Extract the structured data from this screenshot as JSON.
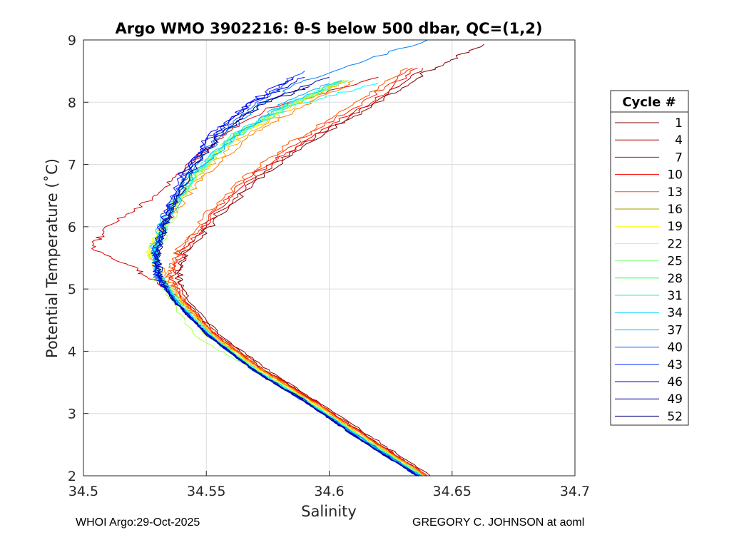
{
  "chart_data": {
    "type": "line",
    "title": "Argo WMO 3902216: θ-S below 500 dbar,  QC=(1,2)",
    "xlabel": "Salinity",
    "ylabel": "Potential Temperature (˚C)",
    "xlim": [
      34.5,
      34.7
    ],
    "ylim": [
      2,
      9
    ],
    "xticks": [
      "34.5",
      "34.55",
      "34.6",
      "34.65",
      "34.7"
    ],
    "yticks": [
      "2",
      "3",
      "4",
      "5",
      "6",
      "7",
      "8",
      "9"
    ],
    "grid": true,
    "legend": {
      "title": "Cycle #",
      "placement": "outside-right"
    },
    "series": [
      {
        "name": "1",
        "color": "#7f0000",
        "salinity": [
          34.641,
          34.618,
          34.595,
          34.575,
          34.556,
          34.543,
          34.539,
          34.542,
          34.556,
          34.574,
          34.596,
          34.618,
          34.64,
          34.663
        ],
        "theta": [
          2.0,
          2.6,
          3.2,
          3.7,
          4.25,
          4.8,
          5.2,
          5.6,
          6.2,
          6.85,
          7.45,
          7.95,
          8.5,
          8.93
        ]
      },
      {
        "name": "4",
        "color": "#a80000",
        "salinity": [
          34.64,
          34.617,
          34.594,
          34.574,
          34.555,
          34.542,
          34.538,
          34.541,
          34.554,
          34.572,
          34.594,
          34.616,
          34.638
        ],
        "theta": [
          2.0,
          2.6,
          3.2,
          3.7,
          4.25,
          4.8,
          5.2,
          5.6,
          6.2,
          6.85,
          7.45,
          7.95,
          8.55
        ]
      },
      {
        "name": "7",
        "color": "#d20000",
        "salinity": [
          34.64,
          34.617,
          34.594,
          34.573,
          34.554,
          34.542,
          34.535,
          34.522,
          34.503,
          34.51,
          34.528,
          34.54,
          34.555,
          34.575,
          34.62
        ],
        "theta": [
          2.0,
          2.6,
          3.2,
          3.7,
          4.25,
          4.7,
          5.0,
          5.3,
          5.65,
          6.0,
          6.45,
          6.9,
          7.4,
          7.9,
          8.4
        ]
      },
      {
        "name": "10",
        "color": "#fc0000",
        "salinity": [
          34.64,
          34.616,
          34.594,
          34.573,
          34.554,
          34.541,
          34.536,
          34.54,
          34.553,
          34.57,
          34.592,
          34.615,
          34.636
        ],
        "theta": [
          2.0,
          2.6,
          3.2,
          3.7,
          4.25,
          4.8,
          5.2,
          5.6,
          6.2,
          6.85,
          7.45,
          7.95,
          8.55
        ]
      },
      {
        "name": "13",
        "color": "#ff2a00",
        "salinity": [
          34.64,
          34.616,
          34.594,
          34.573,
          34.554,
          34.541,
          34.535,
          34.539,
          34.552,
          34.569,
          34.59,
          34.612,
          34.634
        ],
        "theta": [
          2.0,
          2.6,
          3.2,
          3.7,
          4.25,
          4.8,
          5.2,
          5.6,
          6.2,
          6.85,
          7.45,
          7.95,
          8.55
        ]
      },
      {
        "name": "16",
        "color": "#ff5500",
        "salinity": [
          34.639,
          34.616,
          34.593,
          34.573,
          34.554,
          34.541,
          34.535,
          34.538,
          34.55,
          34.567,
          34.588,
          34.61,
          34.632
        ],
        "theta": [
          2.0,
          2.6,
          3.2,
          3.7,
          4.25,
          4.8,
          5.2,
          5.6,
          6.2,
          6.85,
          7.45,
          7.95,
          8.55
        ]
      },
      {
        "name": "19",
        "color": "#ff7f00",
        "salinity": [
          34.639,
          34.615,
          34.593,
          34.572,
          34.553,
          34.54,
          34.533,
          34.528,
          34.536,
          34.55,
          34.568,
          34.59,
          34.61
        ],
        "theta": [
          2.0,
          2.6,
          3.2,
          3.7,
          4.25,
          4.8,
          5.2,
          5.6,
          6.2,
          6.85,
          7.45,
          7.95,
          8.35
        ]
      },
      {
        "name": "22",
        "color": "#ffaa00",
        "salinity": [
          34.639,
          34.615,
          34.593,
          34.572,
          34.553,
          34.54,
          34.532,
          34.527,
          34.535,
          34.548,
          34.565,
          34.586,
          34.608
        ],
        "theta": [
          2.0,
          2.6,
          3.2,
          3.7,
          4.25,
          4.8,
          5.2,
          5.6,
          6.2,
          6.85,
          7.45,
          7.95,
          8.35
        ]
      },
      {
        "name": "25",
        "color": "#ffd400",
        "salinity": [
          34.638,
          34.615,
          34.592,
          34.572,
          34.553,
          34.54,
          34.531,
          34.526,
          34.534,
          34.547,
          34.563,
          34.585,
          34.607
        ],
        "theta": [
          2.0,
          2.6,
          3.2,
          3.7,
          4.25,
          4.8,
          5.2,
          5.6,
          6.2,
          6.85,
          7.45,
          7.95,
          8.35
        ]
      },
      {
        "name": "28",
        "color": "#ffff00",
        "salinity": [
          34.638,
          34.614,
          34.592,
          34.571,
          34.552,
          34.539,
          34.531,
          34.527,
          34.534,
          34.546,
          34.562,
          34.584,
          34.606
        ],
        "theta": [
          2.0,
          2.6,
          3.2,
          3.7,
          4.25,
          4.8,
          5.2,
          5.6,
          6.2,
          6.85,
          7.45,
          7.95,
          8.35
        ]
      },
      {
        "name": "31",
        "color": "#d4ff2a",
        "salinity": [
          34.638,
          34.614,
          34.592,
          34.571,
          34.55,
          34.537,
          34.53,
          34.527,
          34.534,
          34.546,
          34.561,
          34.583,
          34.605
        ],
        "theta": [
          2.0,
          2.6,
          3.2,
          3.7,
          4.25,
          4.8,
          5.2,
          5.6,
          6.2,
          6.85,
          7.45,
          7.95,
          8.35
        ]
      },
      {
        "name": "34",
        "color": "#aaff55",
        "salinity": [
          34.638,
          34.614,
          34.591,
          34.57,
          34.545,
          34.536,
          34.529,
          34.53,
          34.537,
          34.547,
          34.56,
          34.58,
          34.598
        ],
        "theta": [
          2.0,
          2.6,
          3.2,
          3.7,
          4.25,
          4.8,
          5.2,
          5.6,
          6.2,
          6.85,
          7.45,
          7.9,
          8.2
        ]
      },
      {
        "name": "37",
        "color": "#7fff7f",
        "salinity": [
          34.638,
          34.614,
          34.591,
          34.57,
          34.552,
          34.539,
          34.531,
          34.529,
          34.535,
          34.546,
          34.562,
          34.583,
          34.606
        ],
        "theta": [
          2.0,
          2.6,
          3.2,
          3.7,
          4.25,
          4.8,
          5.2,
          5.6,
          6.2,
          6.85,
          7.45,
          7.95,
          8.35
        ]
      },
      {
        "name": "40",
        "color": "#55ffaa",
        "salinity": [
          34.638,
          34.614,
          34.591,
          34.57,
          34.552,
          34.539,
          34.531,
          34.529,
          34.535,
          34.546,
          34.562,
          34.584,
          34.608
        ],
        "theta": [
          2.0,
          2.6,
          3.2,
          3.7,
          4.25,
          4.8,
          5.2,
          5.6,
          6.2,
          6.85,
          7.45,
          7.95,
          8.35
        ]
      },
      {
        "name": "43",
        "color": "#2affd4",
        "salinity": [
          34.637,
          34.613,
          34.591,
          34.57,
          34.552,
          34.538,
          34.531,
          34.529,
          34.535,
          34.545,
          34.56,
          34.582,
          34.605
        ],
        "theta": [
          2.0,
          2.6,
          3.2,
          3.7,
          4.25,
          4.8,
          5.2,
          5.6,
          6.2,
          6.85,
          7.45,
          7.95,
          8.35
        ]
      },
      {
        "name": "46",
        "color": "#00ffff",
        "salinity": [
          34.637,
          34.613,
          34.591,
          34.57,
          34.552,
          34.538,
          34.531,
          34.529,
          34.535,
          34.545,
          34.562,
          34.585,
          34.62
        ],
        "theta": [
          2.0,
          2.6,
          3.2,
          3.7,
          4.25,
          4.8,
          5.2,
          5.6,
          6.2,
          6.85,
          7.45,
          7.95,
          8.3
        ]
      },
      {
        "name": "49",
        "color": "#00d4ff",
        "salinity": [
          34.637,
          34.613,
          34.591,
          34.569,
          34.551,
          34.538,
          34.531,
          34.528,
          34.533,
          34.544,
          34.56,
          34.582,
          34.605
        ],
        "theta": [
          2.0,
          2.6,
          3.2,
          3.7,
          4.25,
          4.8,
          5.2,
          5.6,
          6.2,
          6.85,
          7.45,
          7.95,
          8.35
        ]
      },
      {
        "name": "52",
        "color": "#00aaff",
        "salinity": [
          34.637,
          34.613,
          34.59,
          34.569,
          34.551,
          34.538,
          34.531,
          34.529,
          34.535,
          34.545,
          34.562,
          34.58,
          34.6
        ],
        "theta": [
          2.0,
          2.6,
          3.2,
          3.7,
          4.25,
          4.8,
          5.2,
          5.6,
          6.2,
          6.85,
          7.45,
          7.95,
          8.3
        ]
      },
      {
        "name": "",
        "color": "#0080ff",
        "salinity": [
          34.637,
          34.613,
          34.59,
          34.569,
          34.551,
          34.538,
          34.531,
          34.529,
          34.534,
          34.543,
          34.556,
          34.572,
          34.59,
          34.64
        ],
        "theta": [
          2.0,
          2.6,
          3.2,
          3.7,
          4.25,
          4.8,
          5.2,
          5.6,
          6.2,
          6.85,
          7.45,
          7.95,
          8.35,
          9.0
        ]
      },
      {
        "name": "",
        "color": "#0055ff",
        "salinity": [
          34.636,
          34.612,
          34.59,
          34.569,
          34.551,
          34.537,
          34.53,
          34.529,
          34.533,
          34.542,
          34.554,
          34.57,
          34.59
        ],
        "theta": [
          2.0,
          2.6,
          3.2,
          3.7,
          4.25,
          4.8,
          5.2,
          5.6,
          6.2,
          6.85,
          7.45,
          7.95,
          8.5
        ]
      },
      {
        "name": "",
        "color": "#002aff",
        "salinity": [
          34.636,
          34.612,
          34.59,
          34.569,
          34.551,
          34.537,
          34.53,
          34.529,
          34.534,
          34.541,
          34.552,
          34.567,
          34.585
        ],
        "theta": [
          2.0,
          2.6,
          3.2,
          3.7,
          4.25,
          4.8,
          5.2,
          5.6,
          6.2,
          6.85,
          7.45,
          7.95,
          8.4
        ]
      },
      {
        "name": "",
        "color": "#0000ff",
        "salinity": [
          34.636,
          34.612,
          34.59,
          34.569,
          34.551,
          34.537,
          34.53,
          34.529,
          34.533,
          34.54,
          34.551,
          34.566,
          34.585
        ],
        "theta": [
          2.0,
          2.6,
          3.2,
          3.7,
          4.25,
          4.8,
          5.2,
          5.6,
          6.2,
          6.85,
          7.45,
          7.95,
          8.4
        ]
      },
      {
        "name": "",
        "color": "#0000d4",
        "salinity": [
          34.636,
          34.612,
          34.59,
          34.569,
          34.551,
          34.537,
          34.53,
          34.53,
          34.534,
          34.541,
          34.552,
          34.567,
          34.59
        ],
        "theta": [
          2.0,
          2.6,
          3.2,
          3.7,
          4.25,
          4.8,
          5.2,
          5.6,
          6.2,
          6.85,
          7.45,
          7.95,
          8.4
        ]
      },
      {
        "name": "",
        "color": "#0000aa",
        "salinity": [
          34.636,
          34.612,
          34.59,
          34.569,
          34.551,
          34.537,
          34.531,
          34.53,
          34.535,
          34.543,
          34.555,
          34.57,
          34.6
        ],
        "theta": [
          2.0,
          2.6,
          3.2,
          3.7,
          4.25,
          4.8,
          5.2,
          5.6,
          6.2,
          6.85,
          7.45,
          7.95,
          8.4
        ]
      },
      {
        "name": "",
        "color": "#00007f",
        "salinity": [
          34.636,
          34.612,
          34.59,
          34.569,
          34.551,
          34.537,
          34.531,
          34.53,
          34.535,
          34.543,
          34.555,
          34.572,
          34.592
        ],
        "theta": [
          2.0,
          2.6,
          3.2,
          3.7,
          4.25,
          4.8,
          5.2,
          5.6,
          6.2,
          6.85,
          7.45,
          7.95,
          8.25
        ]
      }
    ],
    "legend_entries": [
      {
        "label": "1",
        "color": "#7f0000"
      },
      {
        "label": "4",
        "color": "#a80000"
      },
      {
        "label": "7",
        "color": "#d20000"
      },
      {
        "label": "10",
        "color": "#fc0000"
      },
      {
        "label": "13",
        "color": "#ff5500"
      },
      {
        "label": "16",
        "color": "#aa9a00"
      },
      {
        "label": "19",
        "color": "#ffff00"
      },
      {
        "label": "22",
        "color": "#d4ff2a"
      },
      {
        "label": "25",
        "color": "#7fff7f"
      },
      {
        "label": "28",
        "color": "#2aff55"
      },
      {
        "label": "31",
        "color": "#00ffd4"
      },
      {
        "label": "34",
        "color": "#00d4ff"
      },
      {
        "label": "37",
        "color": "#00aaff"
      },
      {
        "label": "40",
        "color": "#0055ff"
      },
      {
        "label": "43",
        "color": "#002aff"
      },
      {
        "label": "46",
        "color": "#0000d4"
      },
      {
        "label": "49",
        "color": "#0000aa"
      },
      {
        "label": "52",
        "color": "#00007f"
      }
    ]
  },
  "footer": {
    "left": "WHOI Argo:29-Oct-2025",
    "right": "GREGORY C. JOHNSON at aoml"
  }
}
